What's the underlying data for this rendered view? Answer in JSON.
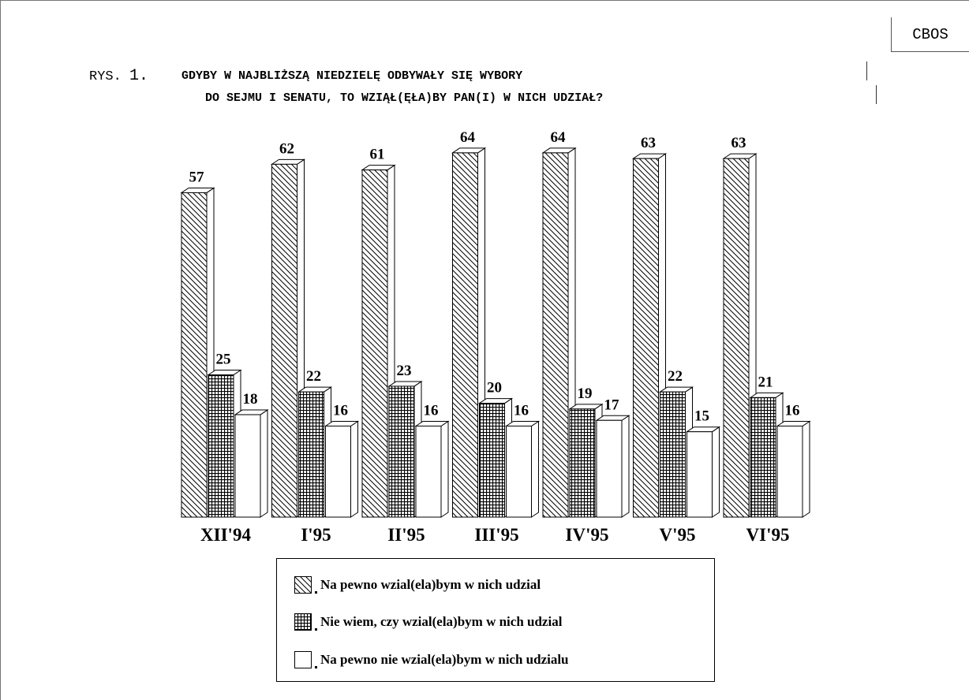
{
  "header": {
    "source_box": "CBOS",
    "figure_prefix": "RYS.",
    "figure_number": "1.",
    "title_line1": "GDYBY W NAJBLIŻSZĄ NIEDZIELĘ ODBYWAŁY SIĘ WYBORY",
    "title_line2": "DO SEJMU I SENATU, TO WZIĄŁ(ĘŁA)BY PAN(I) W NICH UDZIAŁ?"
  },
  "chart_data": {
    "type": "bar",
    "style": "3d-grouped",
    "categories": [
      "XII'94",
      "I'95",
      "II'95",
      "III'95",
      "IV'95",
      "V'95",
      "VI'95"
    ],
    "series": [
      {
        "name": "Na pewno wzial(ela)bym w nich udzial",
        "pattern": "diagonal-hatch",
        "values": [
          57,
          62,
          61,
          64,
          64,
          63,
          63
        ]
      },
      {
        "name": "Nie wiem, czy wzial(ela)bym w nich udzial",
        "pattern": "crosshatch",
        "values": [
          25,
          22,
          23,
          20,
          19,
          22,
          21
        ]
      },
      {
        "name": "Na pewno nie wzial(ela)bym w nich udzialu",
        "pattern": "white",
        "values": [
          18,
          16,
          16,
          16,
          17,
          15,
          16
        ]
      }
    ],
    "ylim": [
      0,
      70
    ],
    "grid": false,
    "legend_position": "bottom-center",
    "data_labels": true
  }
}
